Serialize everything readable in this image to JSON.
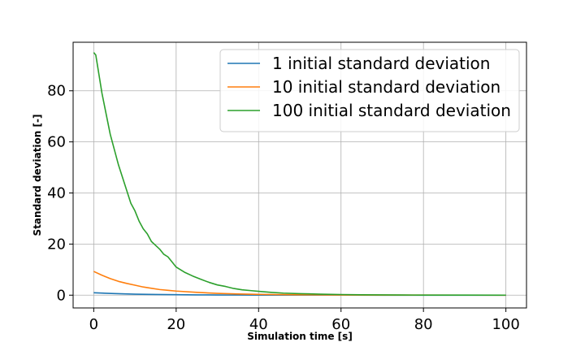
{
  "chart_data": {
    "type": "line",
    "xlabel": "Simulation time [s]",
    "ylabel": "Standard deviation [-]",
    "xlim": [
      -5,
      105
    ],
    "ylim": [
      -5,
      99
    ],
    "xticks": [
      0,
      20,
      40,
      60,
      80,
      100
    ],
    "yticks": [
      0,
      20,
      40,
      60,
      80
    ],
    "grid": true,
    "legend_position": "top-right",
    "series": [
      {
        "name": "1 initial standard deviation",
        "color": "#1f77b4",
        "x": [
          0,
          5,
          10,
          15,
          20,
          25,
          30,
          35,
          40,
          50,
          60,
          70,
          80,
          90,
          100
        ],
        "y": [
          0.95,
          0.62,
          0.4,
          0.27,
          0.18,
          0.12,
          0.08,
          0.05,
          0.04,
          0.02,
          0.01,
          0.0,
          0.0,
          0.0,
          0.0
        ]
      },
      {
        "name": "10 initial standard deviation",
        "color": "#ff7f0e",
        "x": [
          0,
          2,
          4,
          6,
          8,
          10,
          12,
          14,
          16,
          18,
          20,
          25,
          30,
          35,
          40,
          50,
          60,
          70,
          80,
          90,
          100
        ],
        "y": [
          9.3,
          7.8,
          6.5,
          5.4,
          4.6,
          3.9,
          3.2,
          2.7,
          2.2,
          1.9,
          1.6,
          1.1,
          0.7,
          0.45,
          0.3,
          0.15,
          0.08,
          0.04,
          0.02,
          0.01,
          0.0
        ]
      },
      {
        "name": "100 initial standard deviation",
        "color": "#2ca02c",
        "x": [
          0,
          0.5,
          1,
          2,
          3,
          4,
          5,
          6,
          7,
          8,
          9,
          10,
          11,
          12,
          13,
          14,
          15,
          16,
          17,
          18,
          19,
          20,
          21,
          22,
          24,
          26,
          28,
          30,
          32,
          34,
          36,
          38,
          40,
          43,
          46,
          50,
          55,
          60,
          65,
          70,
          75,
          80,
          90,
          100
        ],
        "y": [
          95,
          94,
          89,
          79,
          71,
          63,
          57,
          51,
          46,
          41,
          36,
          33,
          29,
          26,
          24,
          21,
          19.5,
          18,
          16,
          15,
          13,
          11,
          10,
          9,
          7.5,
          6.2,
          5,
          4,
          3.4,
          2.6,
          2.1,
          1.8,
          1.5,
          1.1,
          0.8,
          0.6,
          0.4,
          0.25,
          0.15,
          0.1,
          0.06,
          0.04,
          0.02,
          0.01
        ]
      }
    ]
  }
}
